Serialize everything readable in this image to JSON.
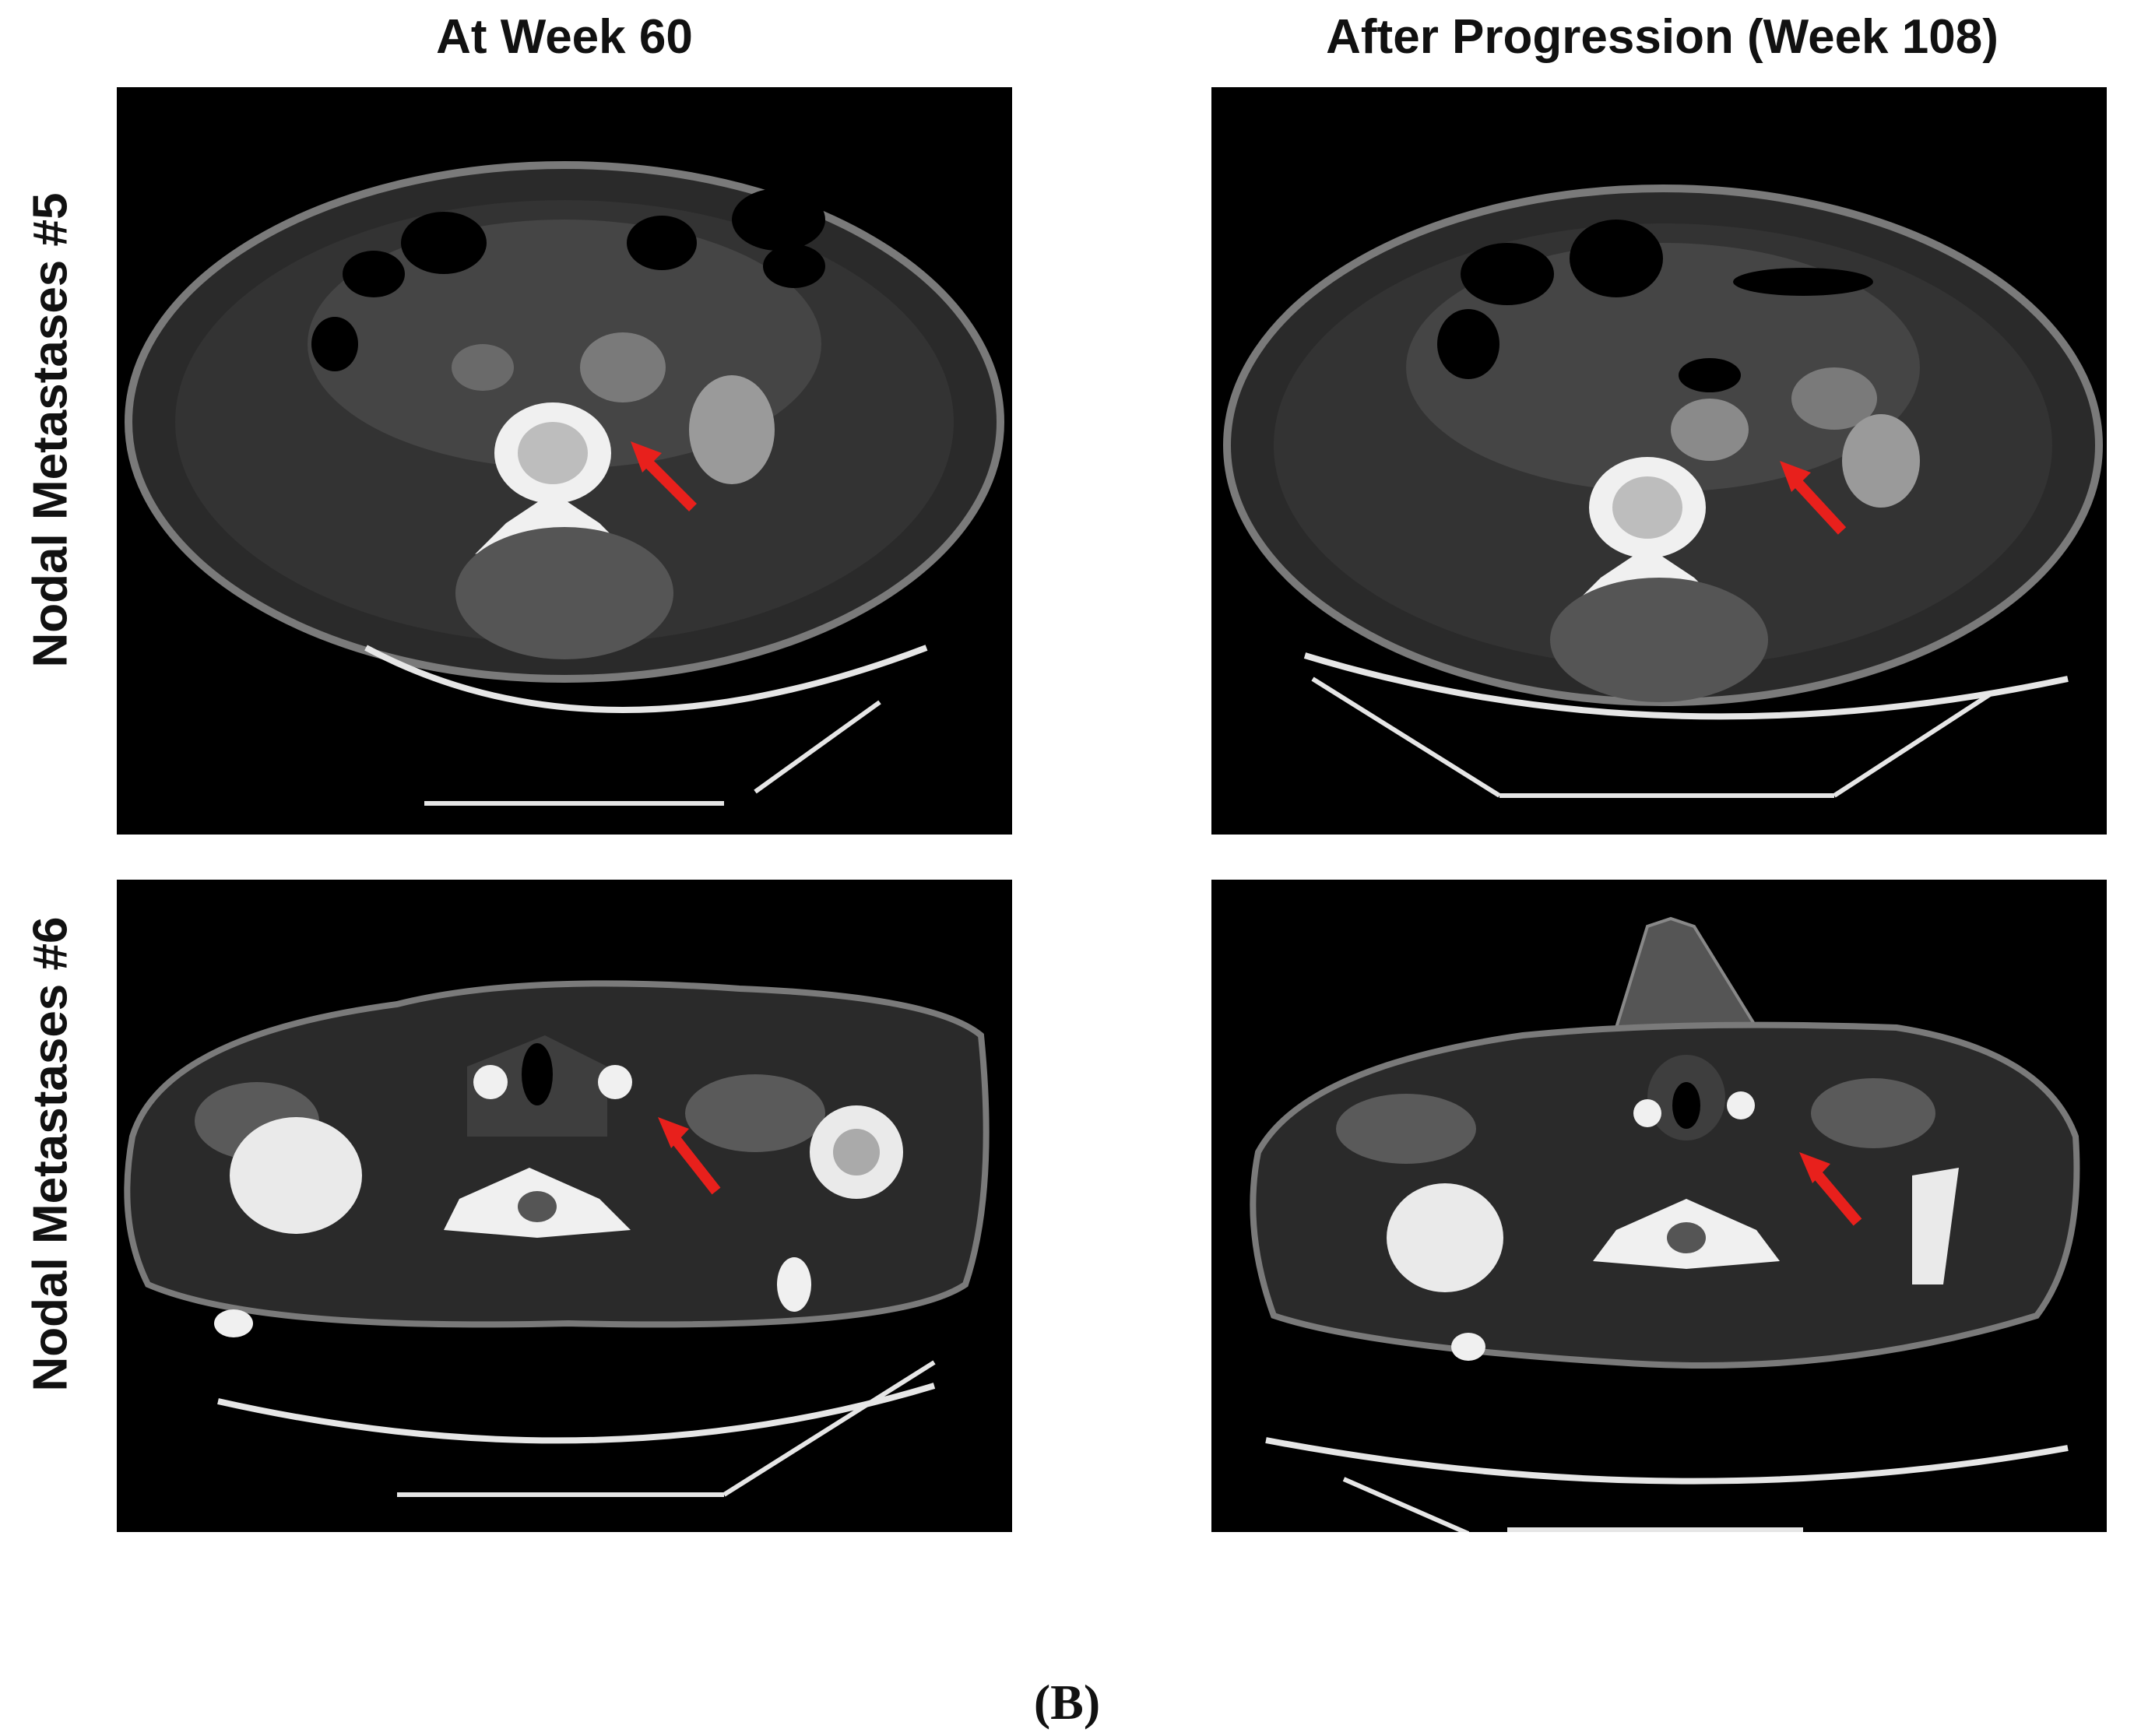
{
  "columns": [
    "At Week 60",
    "After Progression (Week 108)"
  ],
  "rows": [
    "Nodal Metastases #5",
    "Nodal Metastases #6"
  ],
  "caption": "(B)",
  "colors": {
    "arrow": "#e8201c",
    "background": "#000000",
    "tissue": "#5a5a5a",
    "bone": "#f2f2f2"
  },
  "panels": [
    {
      "row": "Nodal Metastases #5",
      "column": "At Week 60",
      "content": "axial CT slice, abdomen",
      "marker": "red-arrow"
    },
    {
      "row": "Nodal Metastases #5",
      "column": "After Progression (Week 108)",
      "content": "axial CT slice, abdomen",
      "marker": "red-arrow"
    },
    {
      "row": "Nodal Metastases #6",
      "column": "At Week 60",
      "content": "axial CT slice, neck/shoulders",
      "marker": "red-arrow"
    },
    {
      "row": "Nodal Metastases #6",
      "column": "After Progression (Week 108)",
      "content": "axial CT slice, neck/shoulders",
      "marker": "red-arrow"
    }
  ]
}
